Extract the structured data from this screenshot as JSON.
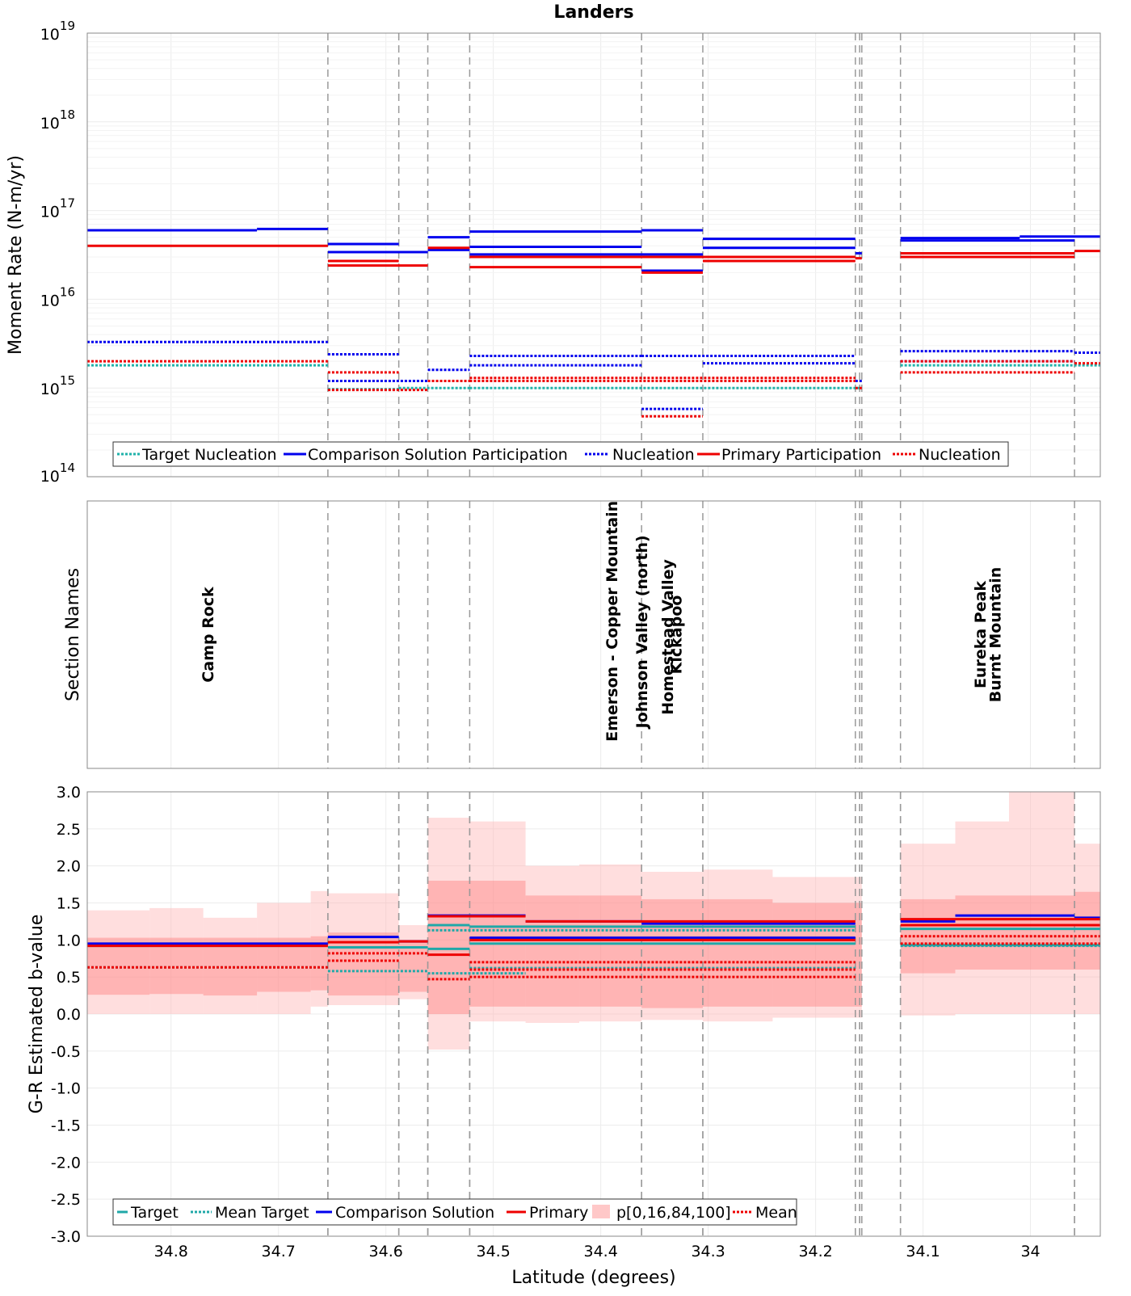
{
  "chart_data": [
    {
      "type": "line",
      "panel": "moment-rate",
      "title": "Landers",
      "xlabel": "",
      "ylabel": "Moment Rate (N-m/yr)",
      "xlim": [
        34.878,
        33.935
      ],
      "yscale": "log",
      "ylim": [
        100000000000000.0,
        1e+19
      ],
      "ytick_labels": [
        {
          "value": 1e+19,
          "base": "10",
          "exp": "19"
        },
        {
          "value": 1e+18,
          "base": "10",
          "exp": "18"
        },
        {
          "value": 1e+17,
          "base": "10",
          "exp": "17"
        },
        {
          "value": 1e+16,
          "base": "10",
          "exp": "16"
        },
        {
          "value": 1000000000000000.0,
          "base": "10",
          "exp": "15"
        },
        {
          "value": 100000000000000.0,
          "base": "10",
          "exp": "14"
        }
      ],
      "section_boundaries": [
        34.654,
        34.588,
        34.561,
        34.522,
        34.362,
        34.305,
        34.163,
        34.159,
        34.157,
        34.121,
        33.959
      ],
      "legend": [
        "Target Nucleation",
        "Comparison Solution Participation",
        "Nucleation",
        "Primary Participation",
        "Nucleation"
      ],
      "series": [
        {
          "name": "Target Nucleation",
          "color": "#20b2aa",
          "dash": true,
          "segments": [
            [
              34.878,
              34.654,
              1800000000000000.0
            ],
            [
              34.654,
              34.588,
              970000000000000.0
            ],
            [
              34.588,
              34.522,
              1000000000000000.0
            ],
            [
              34.522,
              34.159,
              1000000000000000.0
            ],
            [
              34.121,
              33.935,
              1800000000000000.0
            ]
          ]
        },
        {
          "name": "Comparison Solution Participation",
          "color": "#0000ee",
          "dash": false,
          "segments": [
            [
              34.878,
              34.72,
              6e+16
            ],
            [
              34.72,
              34.654,
              6.2e+16
            ],
            [
              34.654,
              34.588,
              4.2e+16
            ],
            [
              34.654,
              34.561,
              3.4e+16
            ],
            [
              34.561,
              34.522,
              5e+16
            ],
            [
              34.561,
              34.522,
              3.6e+16
            ],
            [
              34.522,
              34.362,
              5.8e+16
            ],
            [
              34.522,
              34.362,
              3.9e+16
            ],
            [
              34.522,
              34.305,
              3.2e+16
            ],
            [
              34.362,
              34.305,
              2.1e+16
            ],
            [
              34.362,
              34.305,
              6e+16
            ],
            [
              34.305,
              34.163,
              4.8e+16
            ],
            [
              34.305,
              34.163,
              3.8e+16
            ],
            [
              34.163,
              34.157,
              3.3e+16
            ],
            [
              34.121,
              34.01,
              4.9e+16
            ],
            [
              34.01,
              33.935,
              5.1e+16
            ],
            [
              34.121,
              33.959,
              4.6e+16
            ]
          ]
        },
        {
          "name": "Nucleation",
          "color": "#0000ee",
          "dash": true,
          "segments": [
            [
              34.878,
              34.654,
              3300000000000000.0
            ],
            [
              34.654,
              34.588,
              2400000000000000.0
            ],
            [
              34.654,
              34.561,
              1200000000000000.0
            ],
            [
              34.561,
              34.522,
              1600000000000000.0
            ],
            [
              34.522,
              34.362,
              2300000000000000.0
            ],
            [
              34.522,
              34.362,
              1800000000000000.0
            ],
            [
              34.362,
              34.305,
              580000000000000.0
            ],
            [
              34.362,
              34.163,
              2300000000000000.0
            ],
            [
              34.305,
              34.163,
              1900000000000000.0
            ],
            [
              34.163,
              34.157,
              1200000000000000.0
            ],
            [
              34.121,
              33.959,
              2600000000000000.0
            ],
            [
              34.121,
              33.959,
              2000000000000000.0
            ],
            [
              33.959,
              33.935,
              2500000000000000.0
            ]
          ]
        },
        {
          "name": "Primary Participation",
          "color": "#ee0000",
          "dash": false,
          "segments": [
            [
              34.878,
              34.654,
              4e+16
            ],
            [
              34.654,
              34.588,
              2.7e+16
            ],
            [
              34.654,
              34.561,
              2.4e+16
            ],
            [
              34.561,
              34.522,
              3.8e+16
            ],
            [
              34.522,
              34.362,
              3e+16
            ],
            [
              34.522,
              34.362,
              2.3e+16
            ],
            [
              34.362,
              34.305,
              2e+16
            ],
            [
              34.362,
              34.163,
              3e+16
            ],
            [
              34.305,
              34.163,
              2.7e+16
            ],
            [
              34.163,
              34.157,
              2.9e+16
            ],
            [
              34.121,
              33.959,
              3.3e+16
            ],
            [
              34.121,
              33.959,
              3e+16
            ],
            [
              33.959,
              33.935,
              3.5e+16
            ]
          ]
        },
        {
          "name": "Nucleation",
          "color": "#ee0000",
          "dash": true,
          "segments": [
            [
              34.878,
              34.654,
              2000000000000000.0
            ],
            [
              34.654,
              34.588,
              1500000000000000.0
            ],
            [
              34.654,
              34.561,
              950000000000000.0
            ],
            [
              34.561,
              34.522,
              1200000000000000.0
            ],
            [
              34.522,
              34.163,
              1300000000000000.0
            ],
            [
              34.522,
              34.163,
              1200000000000000.0
            ],
            [
              34.362,
              34.305,
              480000000000000.0
            ],
            [
              34.163,
              34.157,
              1000000000000000.0
            ],
            [
              34.121,
              33.959,
              1500000000000000.0
            ],
            [
              34.121,
              33.959,
              2000000000000000.0
            ],
            [
              33.959,
              33.935,
              1900000000000000.0
            ]
          ]
        }
      ]
    },
    {
      "type": "other",
      "panel": "section-names",
      "ylabel": "Section Names",
      "sections": [
        {
          "name": "Camp Rock",
          "lat": 34.766,
          "y_frac": 0.5
        },
        {
          "name": "Emerson - Copper Mountain",
          "lat": 34.39,
          "y_frac": 0.9
        },
        {
          "name": "Johnson Valley (north)",
          "lat": 34.362,
          "y_frac": 0.85
        },
        {
          "name": "Homestead Valley",
          "lat": 34.338,
          "y_frac": 0.8
        },
        {
          "name": "Kickapoo",
          "lat": 34.33,
          "y_frac": 0.5
        },
        {
          "name": "Eureka Peak",
          "lat": 34.047,
          "y_frac": 0.5
        },
        {
          "name": "Burnt Mountain",
          "lat": 34.033,
          "y_frac": 0.5
        }
      ]
    },
    {
      "type": "line",
      "panel": "b-value",
      "xlabel": "Latitude (degrees)",
      "ylabel": "G-R Estimated b-value",
      "xlim": [
        34.878,
        33.935
      ],
      "ylim": [
        -3.0,
        3.0
      ],
      "xticks": [
        34.8,
        34.7,
        34.6,
        34.5,
        34.4,
        34.3,
        34.2,
        34.1,
        34
      ],
      "xtick_labels": [
        "34.8",
        "34.7",
        "34.6",
        "34.5",
        "34.4",
        "34.3",
        "34.2",
        "34.1",
        "34"
      ],
      "yticks": [
        3.0,
        2.5,
        2.0,
        1.5,
        1.0,
        0.5,
        0.0,
        -0.5,
        -1.0,
        -1.5,
        -2.0,
        -2.5,
        -3.0
      ],
      "ytick_labels": [
        "3.0",
        "2.5",
        "2.0",
        "1.5",
        "1.0",
        "0.5",
        "0.0",
        "-0.5",
        "-1.0",
        "-1.5",
        "-2.0",
        "-2.5",
        "-3.0"
      ],
      "legend": [
        "Target",
        "Mean Target",
        "Comparison Solution",
        "Primary",
        "p[0,16,84,100]",
        "Mean"
      ],
      "bands": [
        {
          "x0": 34.878,
          "x1": 34.82,
          "p0": 0.0,
          "p16": 0.26,
          "p84": 1.03,
          "p100": 1.4
        },
        {
          "x0": 34.82,
          "x1": 34.77,
          "p0": 0.0,
          "p16": 0.27,
          "p84": 1.03,
          "p100": 1.43
        },
        {
          "x0": 34.77,
          "x1": 34.72,
          "p0": 0.0,
          "p16": 0.25,
          "p84": 1.03,
          "p100": 1.3
        },
        {
          "x0": 34.72,
          "x1": 34.67,
          "p0": 0.0,
          "p16": 0.3,
          "p84": 1.03,
          "p100": 1.5
        },
        {
          "x0": 34.67,
          "x1": 34.654,
          "p0": 0.1,
          "p16": 0.32,
          "p84": 1.05,
          "p100": 1.66
        },
        {
          "x0": 34.654,
          "x1": 34.588,
          "p0": 0.12,
          "p16": 0.25,
          "p84": 1.1,
          "p100": 1.63
        },
        {
          "x0": 34.588,
          "x1": 34.561,
          "p0": 0.2,
          "p16": 0.3,
          "p84": 1.0,
          "p100": 1.2
        },
        {
          "x0": 34.561,
          "x1": 34.522,
          "p0": -0.48,
          "p16": 0.0,
          "p84": 1.8,
          "p100": 2.65
        },
        {
          "x0": 34.522,
          "x1": 34.47,
          "p0": -0.1,
          "p16": 0.1,
          "p84": 1.8,
          "p100": 2.6
        },
        {
          "x0": 34.47,
          "x1": 34.42,
          "p0": -0.12,
          "p16": 0.1,
          "p84": 1.6,
          "p100": 2.0
        },
        {
          "x0": 34.42,
          "x1": 34.362,
          "p0": -0.1,
          "p16": 0.1,
          "p84": 1.6,
          "p100": 2.02
        },
        {
          "x0": 34.362,
          "x1": 34.305,
          "p0": -0.08,
          "p16": 0.08,
          "p84": 1.55,
          "p100": 1.92
        },
        {
          "x0": 34.305,
          "x1": 34.24,
          "p0": -0.1,
          "p16": 0.1,
          "p84": 1.55,
          "p100": 1.95
        },
        {
          "x0": 34.24,
          "x1": 34.163,
          "p0": -0.05,
          "p16": 0.1,
          "p84": 1.5,
          "p100": 1.85
        },
        {
          "x0": 34.163,
          "x1": 34.157,
          "p0": -0.05,
          "p16": 0.1,
          "p84": 1.5,
          "p100": 1.85
        },
        {
          "x0": 34.121,
          "x1": 34.07,
          "p0": -0.02,
          "p16": 0.55,
          "p84": 1.55,
          "p100": 2.3
        },
        {
          "x0": 34.07,
          "x1": 34.02,
          "p0": 0.0,
          "p16": 0.6,
          "p84": 1.6,
          "p100": 2.6
        },
        {
          "x0": 34.02,
          "x1": 33.959,
          "p0": 0.0,
          "p16": 0.6,
          "p84": 1.6,
          "p100": 3.0
        },
        {
          "x0": 33.959,
          "x1": 33.935,
          "p0": 0.0,
          "p16": 0.6,
          "p84": 1.65,
          "p100": 2.3
        }
      ],
      "series": [
        {
          "name": "Target",
          "color": "#20a8a8",
          "dash": false,
          "segments": [
            [
              34.878,
              34.654,
              0.92
            ],
            [
              34.654,
              34.561,
              0.9
            ],
            [
              34.561,
              34.522,
              0.88
            ],
            [
              34.561,
              34.522,
              1.2
            ],
            [
              34.522,
              34.163,
              0.95
            ],
            [
              34.522,
              34.163,
              1.18
            ],
            [
              34.121,
              33.935,
              1.15
            ],
            [
              34.121,
              33.935,
              0.93
            ]
          ]
        },
        {
          "name": "Mean Target",
          "color": "#20a8a8",
          "dash": true,
          "segments": [
            [
              34.878,
              34.654,
              0.63
            ],
            [
              34.654,
              34.561,
              0.58
            ],
            [
              34.561,
              34.47,
              0.55
            ],
            [
              34.561,
              34.163,
              1.13
            ],
            [
              34.522,
              34.163,
              0.62
            ],
            [
              34.121,
              33.935,
              0.92
            ]
          ]
        },
        {
          "name": "Comparison Solution",
          "color": "#0000ee",
          "dash": false,
          "segments": [
            [
              34.878,
              34.654,
              0.95
            ],
            [
              34.654,
              34.588,
              1.04
            ],
            [
              34.588,
              34.561,
              0.98
            ],
            [
              34.561,
              34.47,
              1.33
            ],
            [
              34.47,
              34.362,
              1.25
            ],
            [
              34.362,
              34.163,
              1.22
            ],
            [
              34.522,
              34.163,
              1.03
            ],
            [
              34.121,
              34.07,
              1.25
            ],
            [
              34.07,
              33.959,
              1.33
            ],
            [
              33.959,
              33.935,
              1.3
            ]
          ]
        },
        {
          "name": "Primary",
          "color": "#ee0000",
          "dash": false,
          "segments": [
            [
              34.878,
              34.654,
              0.92
            ],
            [
              34.654,
              34.588,
              0.97
            ],
            [
              34.588,
              34.561,
              0.98
            ],
            [
              34.561,
              34.522,
              0.8
            ],
            [
              34.561,
              34.47,
              1.32
            ],
            [
              34.47,
              34.163,
              1.25
            ],
            [
              34.522,
              34.163,
              1.0
            ],
            [
              34.121,
              33.935,
              1.2
            ],
            [
              34.121,
              33.935,
              1.28
            ]
          ]
        },
        {
          "name": "Mean",
          "color": "#ee0000",
          "dash": true,
          "segments": [
            [
              34.878,
              34.654,
              0.63
            ],
            [
              34.654,
              34.588,
              0.72
            ],
            [
              34.654,
              34.561,
              0.82
            ],
            [
              34.561,
              34.522,
              0.47
            ],
            [
              34.522,
              34.163,
              0.7
            ],
            [
              34.522,
              34.163,
              0.6
            ],
            [
              34.522,
              34.163,
              0.5
            ],
            [
              34.121,
              33.935,
              0.95
            ],
            [
              34.121,
              33.935,
              1.05
            ]
          ]
        }
      ]
    }
  ]
}
